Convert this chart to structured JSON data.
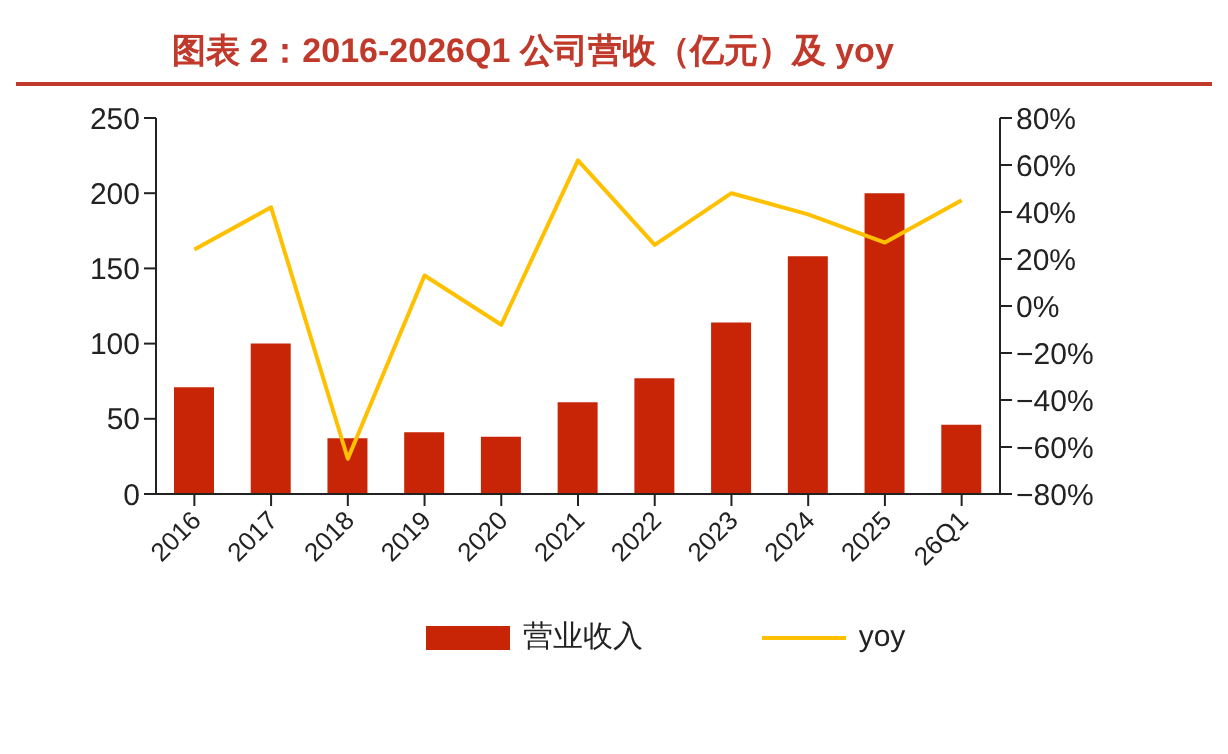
{
  "chart_data": {
    "type": "bar",
    "title": "图表 2：2016-2026Q1 公司营收（亿元）及 yoy",
    "categories": [
      "2016",
      "2017",
      "2018",
      "2019",
      "2020",
      "2021",
      "2022",
      "2023",
      "2024",
      "2025",
      "26Q1"
    ],
    "series": [
      {
        "name": "营业收入",
        "color": "#c82506",
        "values": [
          71,
          100,
          37,
          41,
          38,
          61,
          77,
          114,
          158,
          200,
          46
        ]
      },
      {
        "name": "yoy",
        "type": "line",
        "axis": "y2",
        "color": "#ffc000",
        "values": [
          24,
          42,
          -65,
          13,
          -8,
          62,
          26,
          48,
          39,
          27,
          45
        ]
      }
    ],
    "ylim": [
      0,
      250
    ],
    "yticks": [
      0,
      50,
      100,
      150,
      200,
      250
    ],
    "y2lim": [
      -80,
      80
    ],
    "y2ticks": [
      {
        "value": 80,
        "label": "80%"
      },
      {
        "value": 60,
        "label": "60%"
      },
      {
        "value": 40,
        "label": "40%"
      },
      {
        "value": 20,
        "label": "20%"
      },
      {
        "value": 0,
        "label": "0%"
      },
      {
        "value": -20,
        "label": "−20%"
      },
      {
        "value": -40,
        "label": "−40%"
      },
      {
        "value": -60,
        "label": "−60%"
      },
      {
        "value": -80,
        "label": "−80%"
      }
    ],
    "grid": false,
    "legend": "bottom",
    "marker": "none"
  }
}
